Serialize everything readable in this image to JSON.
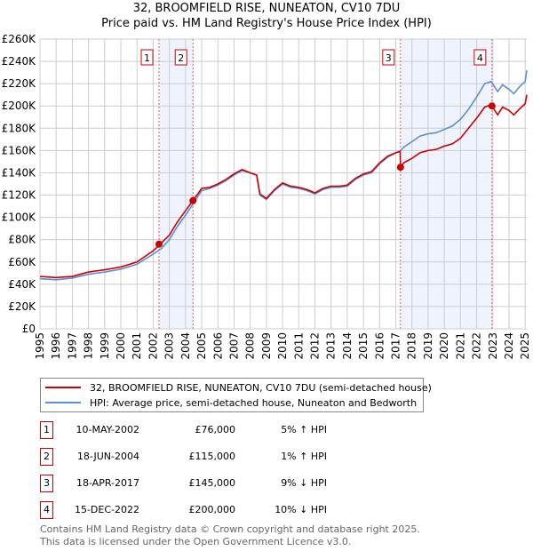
{
  "chart_data": {
    "type": "line",
    "title": "32, BROOMFIELD RISE, NUNEATON, CV10 7DU",
    "subtitle": "Price paid vs. HM Land Registry's House Price Index (HPI)",
    "xlim": [
      1995,
      2025.1
    ],
    "ylim": [
      0,
      260000
    ],
    "yticks": [
      "£0",
      "£20K",
      "£40K",
      "£60K",
      "£80K",
      "£100K",
      "£120K",
      "£140K",
      "£160K",
      "£180K",
      "£200K",
      "£220K",
      "£240K",
      "£260K"
    ],
    "xticks": [
      "1995",
      "1996",
      "1997",
      "1998",
      "1999",
      "2000",
      "2001",
      "2002",
      "2003",
      "2004",
      "2005",
      "2006",
      "2007",
      "2008",
      "2009",
      "2010",
      "2011",
      "2012",
      "2013",
      "2014",
      "2015",
      "2016",
      "2017",
      "2018",
      "2019",
      "2020",
      "2021",
      "2022",
      "2023",
      "2024",
      "2025"
    ],
    "grid": true,
    "series": [
      {
        "name": "32, BROOMFIELD RISE, NUNEATON, CV10 7DU (semi-detached house)",
        "color": "#cc0000",
        "points": [
          [
            1995,
            47
          ],
          [
            1996,
            46
          ],
          [
            1997,
            47
          ],
          [
            1998,
            51
          ],
          [
            1999,
            53
          ],
          [
            2000,
            55.5
          ],
          [
            2001,
            60
          ],
          [
            2002,
            70
          ],
          [
            2002.5,
            77
          ],
          [
            2003,
            84
          ],
          [
            2003.5,
            96
          ],
          [
            2004,
            106
          ],
          [
            2004.5,
            116
          ],
          [
            2005,
            126
          ],
          [
            2005.5,
            127
          ],
          [
            2006,
            130
          ],
          [
            2006.5,
            134
          ],
          [
            2007,
            139
          ],
          [
            2007.5,
            143
          ],
          [
            2008,
            140
          ],
          [
            2008.4,
            138
          ],
          [
            2008.6,
            121
          ],
          [
            2009,
            117
          ],
          [
            2009.5,
            125
          ],
          [
            2010,
            131
          ],
          [
            2010.5,
            128
          ],
          [
            2011,
            127
          ],
          [
            2011.5,
            125
          ],
          [
            2012,
            122
          ],
          [
            2012.5,
            126
          ],
          [
            2013,
            128
          ],
          [
            2013.5,
            128
          ],
          [
            2014,
            129
          ],
          [
            2014.5,
            135
          ],
          [
            2015,
            139
          ],
          [
            2015.5,
            141
          ],
          [
            2016,
            149
          ],
          [
            2016.5,
            155
          ],
          [
            2017,
            158
          ],
          [
            2017.27,
            159
          ],
          [
            2017.29,
            145
          ],
          [
            2017.5,
            149
          ],
          [
            2018,
            153
          ],
          [
            2018.5,
            158
          ],
          [
            2019,
            160
          ],
          [
            2019.5,
            161
          ],
          [
            2020,
            164
          ],
          [
            2020.5,
            166
          ],
          [
            2021,
            171
          ],
          [
            2021.5,
            180
          ],
          [
            2022,
            189
          ],
          [
            2022.5,
            199
          ],
          [
            2022.9,
            201
          ],
          [
            2023.3,
            192
          ],
          [
            2023.6,
            199
          ],
          [
            2024,
            196
          ],
          [
            2024.3,
            192
          ],
          [
            2024.7,
            198
          ],
          [
            2025,
            202
          ],
          [
            2025.1,
            210
          ]
        ]
      },
      {
        "name": "HPI: Average price, semi-detached house, Nuneaton and Bedworth",
        "color": "#5b8fd6",
        "points": [
          [
            1995,
            45
          ],
          [
            1996,
            44
          ],
          [
            1997,
            45.5
          ],
          [
            1998,
            49
          ],
          [
            1999,
            51
          ],
          [
            2000,
            53.5
          ],
          [
            2001,
            58
          ],
          [
            2002,
            67
          ],
          [
            2002.5,
            72
          ],
          [
            2003,
            80
          ],
          [
            2003.5,
            92
          ],
          [
            2004,
            102
          ],
          [
            2004.5,
            113
          ],
          [
            2005,
            124
          ],
          [
            2005.5,
            126
          ],
          [
            2006,
            129
          ],
          [
            2006.5,
            133
          ],
          [
            2007,
            138
          ],
          [
            2007.5,
            142
          ],
          [
            2008,
            140
          ],
          [
            2008.4,
            138
          ],
          [
            2008.6,
            120
          ],
          [
            2009,
            116
          ],
          [
            2009.5,
            124
          ],
          [
            2010,
            130
          ],
          [
            2010.5,
            127
          ],
          [
            2011,
            126
          ],
          [
            2011.5,
            124
          ],
          [
            2012,
            121
          ],
          [
            2012.5,
            125
          ],
          [
            2013,
            127
          ],
          [
            2013.5,
            127
          ],
          [
            2014,
            128
          ],
          [
            2014.5,
            134
          ],
          [
            2015,
            138
          ],
          [
            2015.5,
            140
          ],
          [
            2016,
            148
          ],
          [
            2016.5,
            154
          ],
          [
            2017,
            158
          ],
          [
            2017.3,
            160
          ],
          [
            2017.5,
            163
          ],
          [
            2018,
            168
          ],
          [
            2018.5,
            173
          ],
          [
            2019,
            175
          ],
          [
            2019.5,
            176
          ],
          [
            2020,
            179
          ],
          [
            2020.5,
            182
          ],
          [
            2021,
            188
          ],
          [
            2021.5,
            197
          ],
          [
            2022,
            208
          ],
          [
            2022.5,
            220
          ],
          [
            2022.9,
            222
          ],
          [
            2023.3,
            213
          ],
          [
            2023.6,
            219
          ],
          [
            2024,
            215
          ],
          [
            2024.3,
            211
          ],
          [
            2024.7,
            218
          ],
          [
            2025,
            222
          ],
          [
            2025.1,
            232
          ]
        ]
      }
    ],
    "sales": [
      {
        "id": "1",
        "x": 2002.36,
        "y": 76000,
        "date": "10-MAY-2002",
        "price": "£76,000",
        "hpi": "5% ↑ HPI"
      },
      {
        "id": "2",
        "x": 2004.46,
        "y": 115000,
        "date": "18-JUN-2004",
        "price": "£115,000",
        "hpi": "1% ↑ HPI"
      },
      {
        "id": "3",
        "x": 2017.29,
        "y": 145000,
        "date": "18-APR-2017",
        "price": "£145,000",
        "hpi": "9% ↓ HPI"
      },
      {
        "id": "4",
        "x": 2022.95,
        "y": 200000,
        "date": "15-DEC-2022",
        "price": "£200,000",
        "hpi": "10% ↓ HPI"
      }
    ],
    "legend_placement": "below"
  },
  "footer": [
    "Contains HM Land Registry data © Crown copyright and database right 2025.",
    "This data is licensed under the Open Government Licence v3.0."
  ]
}
